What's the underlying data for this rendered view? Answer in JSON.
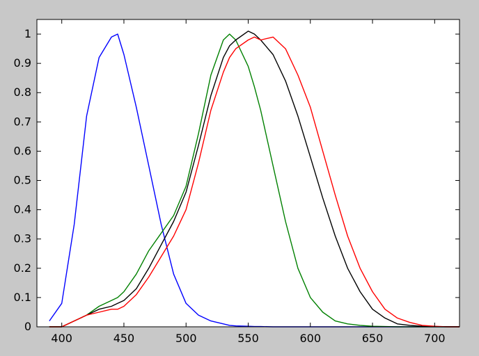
{
  "chart_data": {
    "type": "line",
    "title": "",
    "xlabel": "",
    "ylabel": "",
    "xlim": [
      380,
      720
    ],
    "ylim": [
      0,
      1.05
    ],
    "grid": false,
    "legend": "none",
    "x_ticks": [
      400,
      450,
      500,
      550,
      600,
      650,
      700
    ],
    "x_tick_labels": [
      "400",
      "450",
      "500",
      "550",
      "600",
      "650",
      "700"
    ],
    "y_ticks": [
      0,
      0.1,
      0.2,
      0.3,
      0.4,
      0.5,
      0.6,
      0.7,
      0.8,
      0.9,
      1
    ],
    "y_tick_labels": [
      "0",
      "0.1",
      "0.2",
      "0.3",
      "0.4",
      "0.5",
      "0.6",
      "0.7",
      "0.8",
      "0.9",
      "1"
    ],
    "x": [
      390,
      400,
      410,
      420,
      430,
      440,
      445,
      450,
      460,
      470,
      480,
      490,
      500,
      510,
      520,
      530,
      535,
      540,
      550,
      555,
      560,
      570,
      580,
      590,
      600,
      610,
      620,
      630,
      640,
      650,
      660,
      670,
      680,
      690,
      700,
      710,
      720
    ],
    "series": [
      {
        "color": "#0000ff",
        "values": [
          0.02,
          0.08,
          0.35,
          0.72,
          0.92,
          0.99,
          1.0,
          0.93,
          0.75,
          0.55,
          0.35,
          0.18,
          0.08,
          0.04,
          0.02,
          0.01,
          0.005,
          0.003,
          0.002,
          0.001,
          0.001,
          0,
          0,
          0,
          0,
          0,
          0,
          0,
          0,
          0,
          0,
          0,
          0,
          0,
          0,
          0,
          0
        ]
      },
      {
        "color": "#008000",
        "values": [
          0,
          0,
          0.02,
          0.04,
          0.07,
          0.09,
          0.1,
          0.12,
          0.18,
          0.26,
          0.32,
          0.38,
          0.48,
          0.66,
          0.86,
          0.98,
          1.0,
          0.98,
          0.89,
          0.82,
          0.74,
          0.55,
          0.36,
          0.2,
          0.1,
          0.05,
          0.02,
          0.01,
          0.005,
          0.002,
          0.001,
          0,
          0,
          0,
          0,
          0,
          0
        ]
      },
      {
        "color": "#000000",
        "values": [
          0,
          0,
          0.02,
          0.04,
          0.06,
          0.07,
          0.08,
          0.09,
          0.13,
          0.2,
          0.28,
          0.36,
          0.46,
          0.62,
          0.79,
          0.92,
          0.96,
          0.98,
          1.01,
          1.0,
          0.98,
          0.93,
          0.84,
          0.72,
          0.58,
          0.44,
          0.31,
          0.2,
          0.12,
          0.06,
          0.03,
          0.01,
          0.005,
          0.002,
          0.001,
          0,
          0
        ]
      },
      {
        "color": "#ff0000",
        "values": [
          0,
          0,
          0.02,
          0.04,
          0.05,
          0.06,
          0.06,
          0.07,
          0.11,
          0.17,
          0.24,
          0.31,
          0.4,
          0.56,
          0.74,
          0.87,
          0.92,
          0.95,
          0.98,
          0.99,
          0.98,
          0.99,
          0.95,
          0.86,
          0.75,
          0.6,
          0.45,
          0.31,
          0.2,
          0.12,
          0.06,
          0.03,
          0.015,
          0.005,
          0.002,
          0,
          0
        ]
      }
    ]
  }
}
